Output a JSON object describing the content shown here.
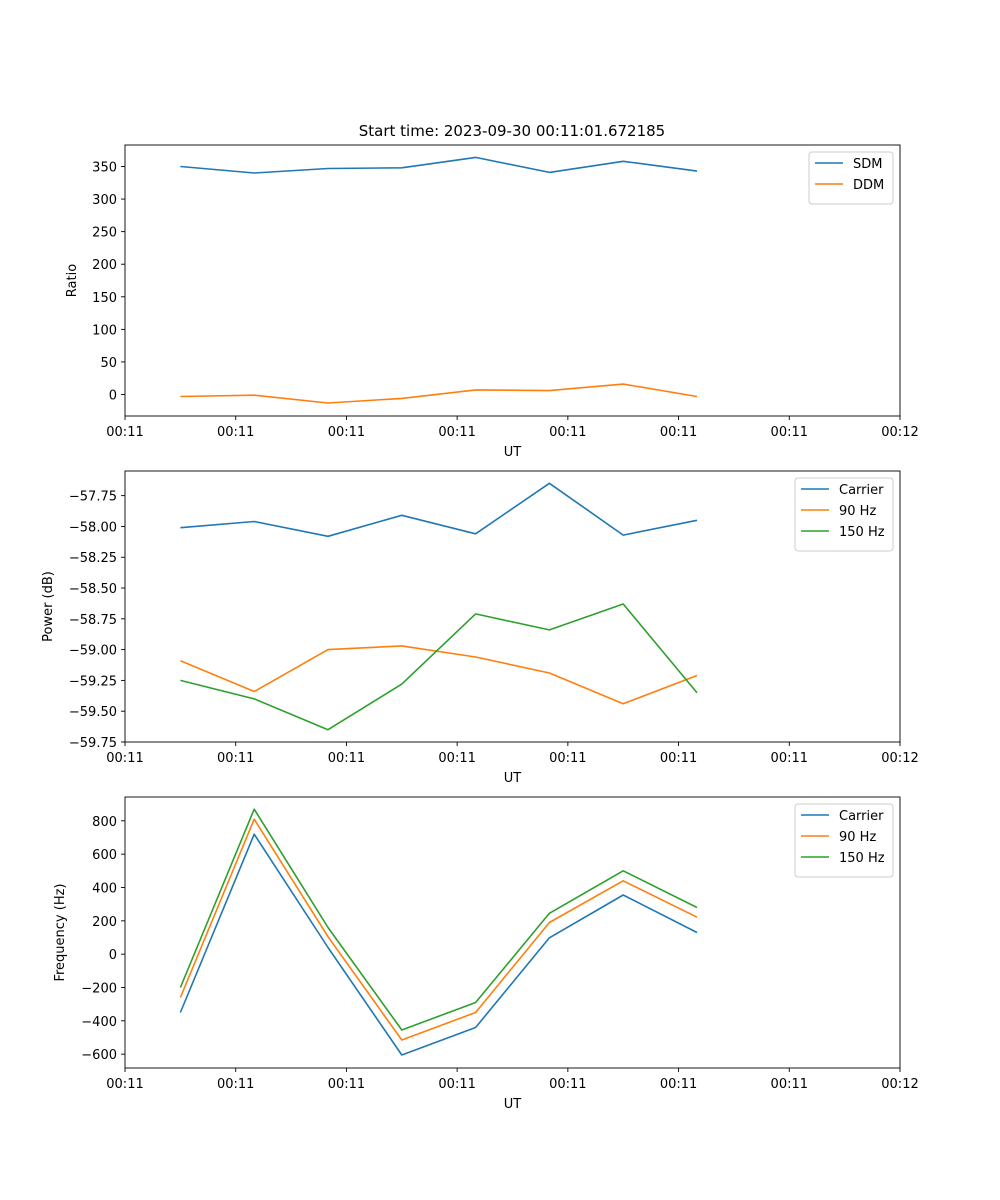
{
  "figure_title": "Start time: 2023-09-30 00:11:01.672185",
  "colors": {
    "c0": "#1f77b4",
    "c1": "#ff7f0e",
    "c2": "#2ca02c"
  },
  "chart_data": [
    {
      "type": "line",
      "xlabel": "UT",
      "ylabel": "Ratio",
      "x_tick_labels": [
        "00:11",
        "00:11",
        "00:11",
        "00:11",
        "00:11",
        "00:11",
        "00:11",
        "00:12"
      ],
      "x_tick_index": [
        0,
        1.5,
        3,
        4.5,
        6,
        7.5,
        9,
        10.5
      ],
      "x_index": [
        0.75,
        1.75,
        2.75,
        3.75,
        4.75,
        5.75,
        6.75,
        7.75
      ],
      "xlim": [
        0,
        10.5
      ],
      "ylim": [
        -33,
        383
      ],
      "y_ticks": [
        0,
        50,
        100,
        150,
        200,
        250,
        300,
        350
      ],
      "y_tick_labels": [
        "0",
        "50",
        "100",
        "150",
        "200",
        "250",
        "300",
        "350"
      ],
      "legend_loc": "top-right",
      "series": [
        {
          "name": "SDM",
          "color": "#1f77b4",
          "values": [
            350,
            340,
            347,
            348,
            364,
            341,
            358,
            343
          ]
        },
        {
          "name": "DDM",
          "color": "#ff7f0e",
          "values": [
            -3,
            -1,
            -13,
            -6,
            7,
            6,
            16,
            -3
          ]
        }
      ]
    },
    {
      "type": "line",
      "xlabel": "UT",
      "ylabel": "Power (dB)",
      "x_tick_labels": [
        "00:11",
        "00:11",
        "00:11",
        "00:11",
        "00:11",
        "00:11",
        "00:11",
        "00:12"
      ],
      "x_tick_index": [
        0,
        1.5,
        3,
        4.5,
        6,
        7.5,
        9,
        10.5
      ],
      "x_index": [
        0.75,
        1.75,
        2.75,
        3.75,
        4.75,
        5.75,
        6.75,
        7.75
      ],
      "xlim": [
        0,
        10.5
      ],
      "ylim": [
        -59.75,
        -57.55
      ],
      "y_ticks": [
        -59.75,
        -59.5,
        -59.25,
        -59.0,
        -58.75,
        -58.5,
        -58.25,
        -58.0,
        -57.75
      ],
      "y_tick_labels": [
        "−59.75",
        "−59.50",
        "−59.25",
        "−59.00",
        "−58.75",
        "−58.50",
        "−58.25",
        "−58.00",
        "−57.75"
      ],
      "legend_loc": "top-right",
      "series": [
        {
          "name": "Carrier",
          "color": "#1f77b4",
          "values": [
            -58.01,
            -57.96,
            -58.08,
            -57.91,
            -58.06,
            -57.65,
            -58.07,
            -57.95
          ]
        },
        {
          "name": "90 Hz",
          "color": "#ff7f0e",
          "values": [
            -59.09,
            -59.34,
            -59.0,
            -58.97,
            -59.06,
            -59.19,
            -59.44,
            -59.21
          ]
        },
        {
          "name": "150 Hz",
          "color": "#2ca02c",
          "values": [
            -59.25,
            -59.4,
            -59.65,
            -59.28,
            -58.71,
            -58.84,
            -58.63,
            -59.35
          ]
        }
      ]
    },
    {
      "type": "line",
      "xlabel": "UT",
      "ylabel": "Frequency (Hz)",
      "x_tick_labels": [
        "00:11",
        "00:11",
        "00:11",
        "00:11",
        "00:11",
        "00:11",
        "00:11",
        "00:12"
      ],
      "x_tick_index": [
        0,
        1.5,
        3,
        4.5,
        6,
        7.5,
        9,
        10.5
      ],
      "x_index": [
        0.75,
        1.75,
        2.75,
        3.75,
        4.75,
        5.75,
        6.75,
        7.75
      ],
      "xlim": [
        0,
        10.5
      ],
      "ylim": [
        -683,
        943
      ],
      "y_ticks": [
        -600,
        -400,
        -200,
        0,
        200,
        400,
        600,
        800
      ],
      "y_tick_labels": [
        "−600",
        "−400",
        "−200",
        "0",
        "200",
        "400",
        "600",
        "800"
      ],
      "legend_loc": "top-right",
      "series": [
        {
          "name": "Carrier",
          "color": "#1f77b4",
          "values": [
            -350,
            720,
            40,
            -605,
            -440,
            98,
            355,
            130
          ]
        },
        {
          "name": "90 Hz",
          "color": "#ff7f0e",
          "values": [
            -260,
            810,
            105,
            -515,
            -350,
            190,
            440,
            222
          ]
        },
        {
          "name": "150 Hz",
          "color": "#2ca02c",
          "values": [
            -200,
            870,
            160,
            -455,
            -290,
            245,
            500,
            280
          ]
        }
      ]
    }
  ]
}
